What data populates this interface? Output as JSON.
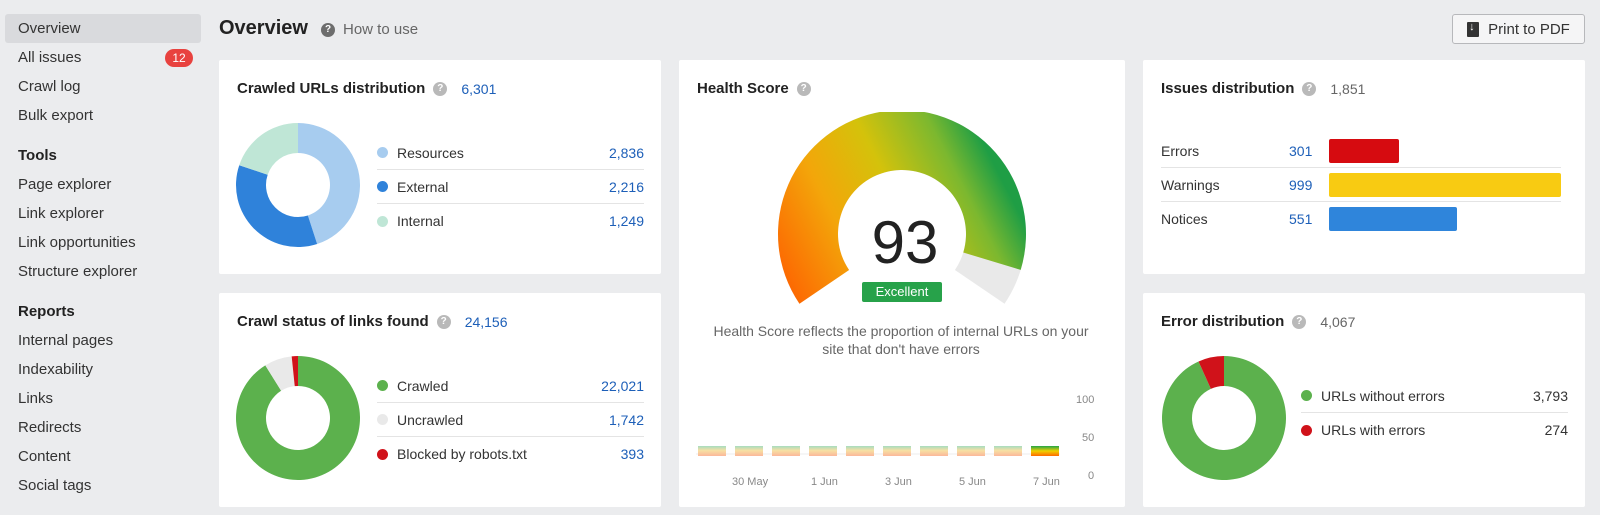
{
  "sidebar": {
    "overview": "Overview",
    "all_issues": "All issues",
    "all_issues_badge": "12",
    "crawl_log": "Crawl log",
    "bulk_export": "Bulk export",
    "tools_heading": "Tools",
    "tools": [
      "Page explorer",
      "Link explorer",
      "Link opportunities",
      "Structure explorer"
    ],
    "reports_heading": "Reports",
    "reports": [
      "Internal pages",
      "Indexability",
      "Links",
      "Redirects",
      "Content",
      "Social tags"
    ]
  },
  "header": {
    "title": "Overview",
    "how_to": "How to use",
    "print_label": "Print to PDF"
  },
  "crawled_urls": {
    "title": "Crawled URLs distribution",
    "total": "6,301",
    "items": [
      {
        "label": "Resources",
        "value": "2,836",
        "color": "#a7ccef"
      },
      {
        "label": "External",
        "value": "2,216",
        "color": "#2f82da"
      },
      {
        "label": "Internal",
        "value": "1,249",
        "color": "#bfe6d6"
      }
    ]
  },
  "crawl_status": {
    "title": "Crawl status of links found",
    "total": "24,156",
    "items": [
      {
        "label": "Crawled",
        "value": "22,021",
        "color": "#5cb14d"
      },
      {
        "label": "Uncrawled",
        "value": "1,742",
        "color": "#e9e9e9"
      },
      {
        "label": "Blocked by robots.txt",
        "value": "393",
        "color": "#d0121a"
      }
    ]
  },
  "health": {
    "title": "Health Score",
    "score": "93",
    "rating": "Excellent",
    "score_fraction": 0.93,
    "description": "Health Score reflects the proportion of internal URLs on your site that don't have errors",
    "x_ticks": [
      "30 May",
      "1 Jun",
      "3 Jun",
      "5 Jun",
      "7 Jun"
    ],
    "y_ticks": [
      "100",
      "50",
      "0"
    ]
  },
  "issues": {
    "title": "Issues distribution",
    "total": "1,851",
    "items": [
      {
        "label": "Errors",
        "value": "301",
        "color": "#d60b10"
      },
      {
        "label": "Warnings",
        "value": "999",
        "color": "#f8cb12"
      },
      {
        "label": "Notices",
        "value": "551",
        "color": "#2f85db"
      }
    ]
  },
  "errors": {
    "title": "Error distribution",
    "total": "4,067",
    "items": [
      {
        "label": "URLs without errors",
        "value": "3,793",
        "color": "#5cb14d"
      },
      {
        "label": "URLs with errors",
        "value": "274",
        "color": "#d0121a"
      }
    ]
  },
  "colors": {
    "link": "#1d5fb8",
    "active_nav": "#d9dadd",
    "badge": "#e8423f"
  }
}
